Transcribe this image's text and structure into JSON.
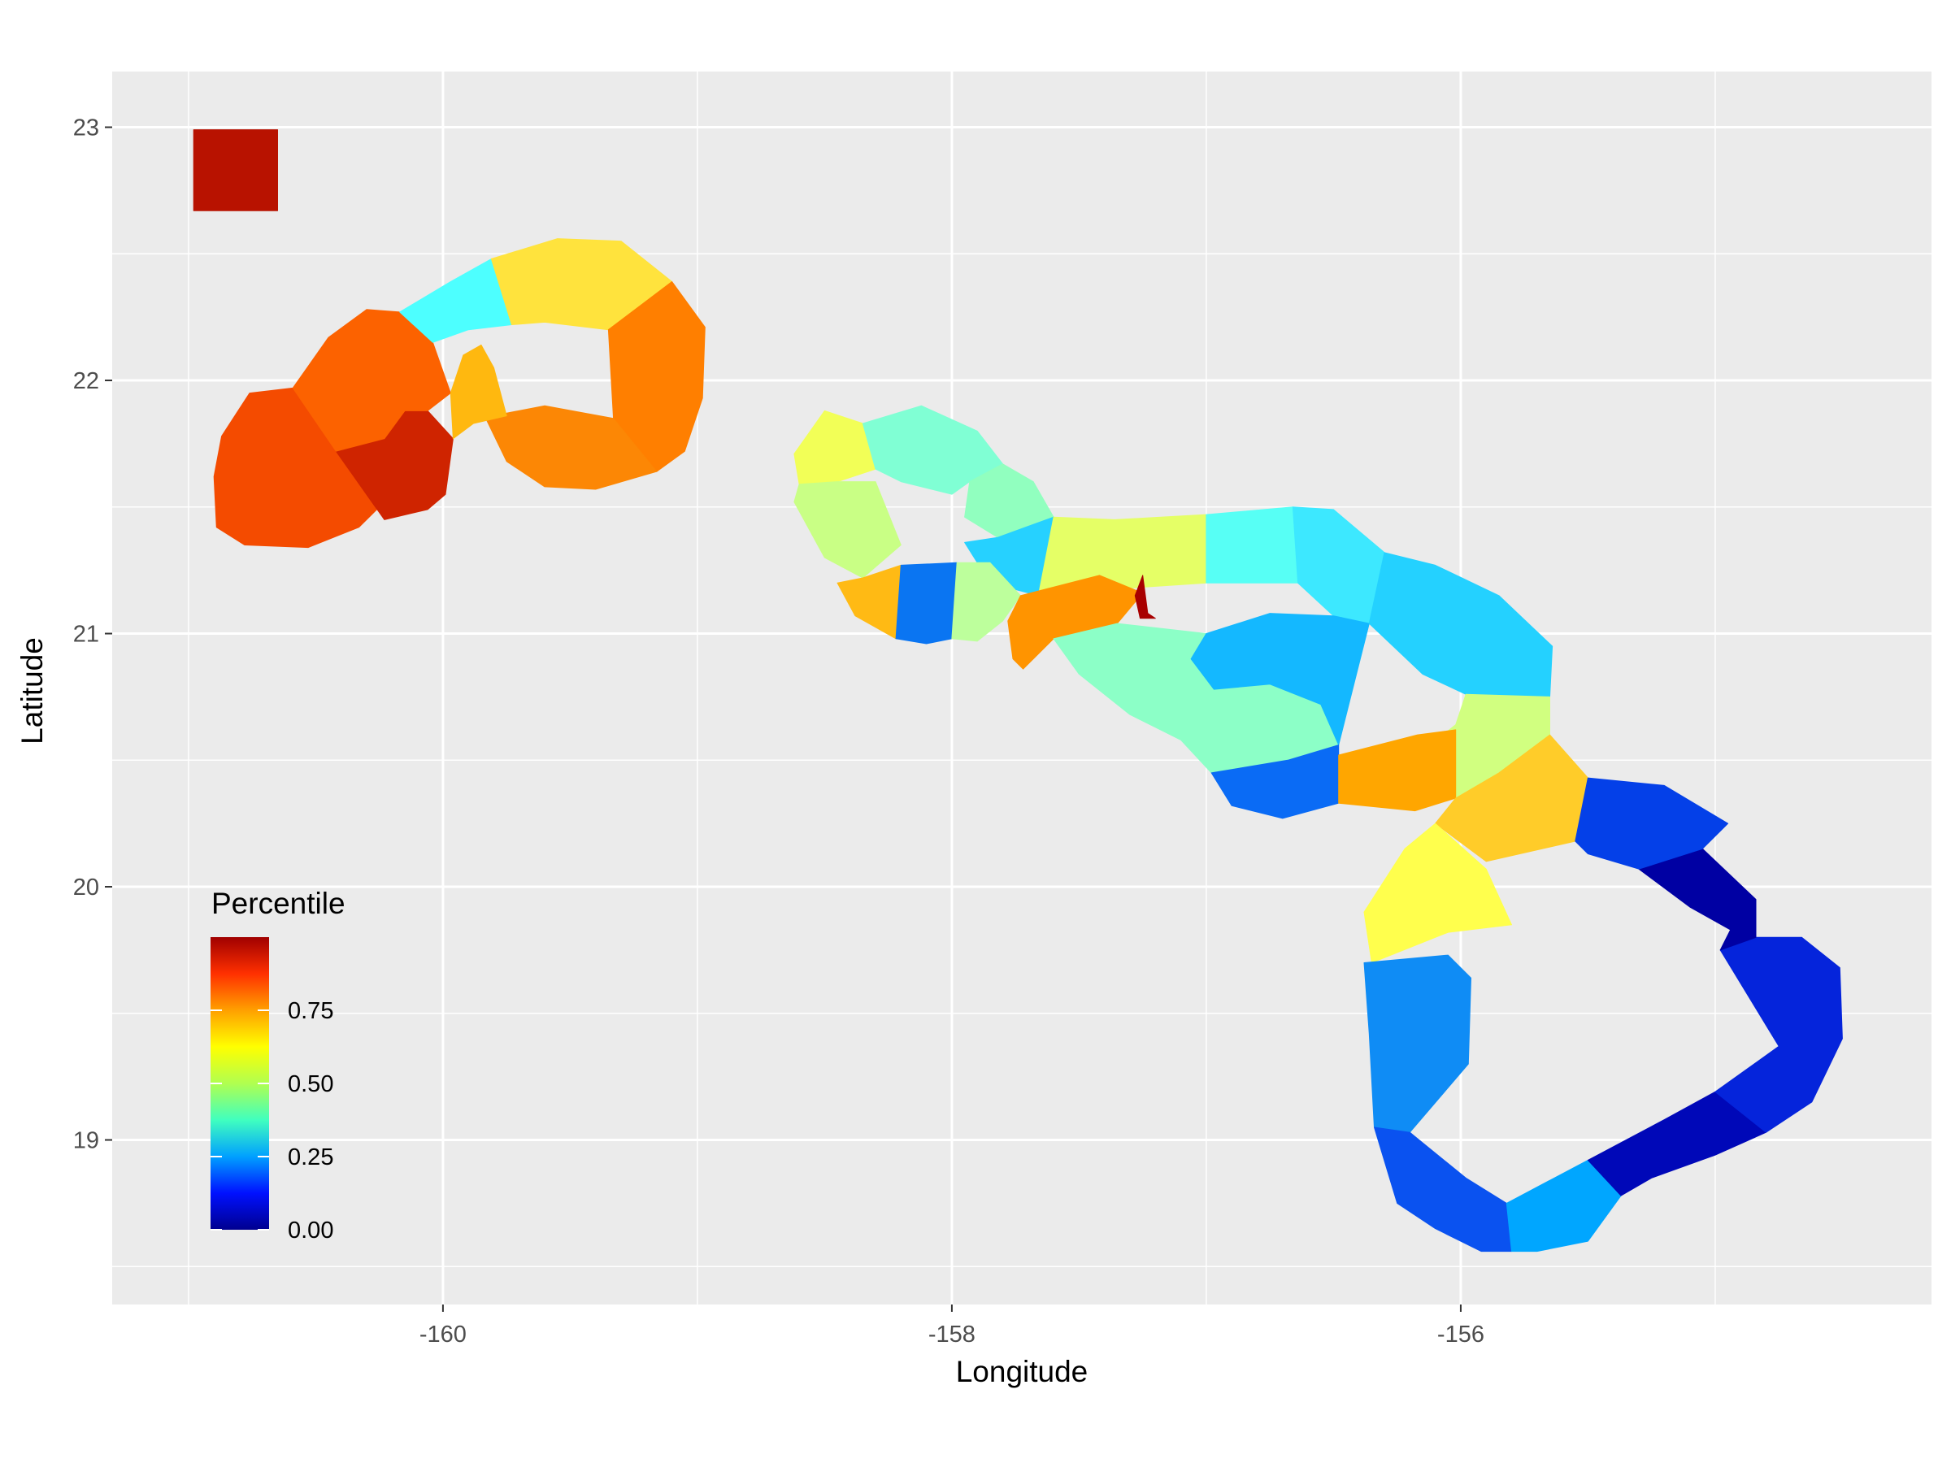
{
  "chart_data": {
    "type": "heatmap",
    "subtype": "choropleth-map",
    "title": "",
    "xlabel": "Longitude",
    "ylabel": "Latitude",
    "xlim": [
      -161.3,
      -154.15
    ],
    "ylim": [
      18.35,
      23.22
    ],
    "x_ticks": [
      -160,
      -158,
      -156
    ],
    "x_tick_labels": [
      "-160",
      "-158",
      "-156"
    ],
    "y_ticks": [
      19,
      20,
      21,
      22,
      23
    ],
    "y_tick_labels": [
      "19",
      "20",
      "21",
      "22",
      "23"
    ],
    "grid": true,
    "panel_background": "#ebebeb",
    "legend": {
      "title": "Percentile",
      "position": "bottom-left",
      "range": [
        0,
        1
      ],
      "breaks": [
        0,
        0.25,
        0.5,
        0.75
      ],
      "labels": [
        "0.00",
        "0.25",
        "0.50",
        "0.75"
      ],
      "colors": [
        "#00008f",
        "#0010ff",
        "#00a0ff",
        "#40ffbf",
        "#b0ff50",
        "#ffff00",
        "#ffa000",
        "#ff3000",
        "#a00000"
      ]
    },
    "regions": [
      {
        "island": "Nihoa",
        "value": 0.97,
        "color": "#b81200"
      },
      {
        "island": "Niihau",
        "value": 0.86,
        "color": "#f44b00"
      },
      {
        "island": "Niihau",
        "value": 0.89,
        "color": "#cf2400"
      },
      {
        "island": "Kauai",
        "value": 0.84,
        "color": "#fc6200"
      },
      {
        "island": "Kauai",
        "value": 0.31,
        "color": "#4dffff"
      },
      {
        "island": "Kauai",
        "value": 0.66,
        "color": "#ffe33d"
      },
      {
        "island": "Kauai",
        "value": 0.79,
        "color": "#ff7f00"
      },
      {
        "island": "Kauai",
        "value": 0.78,
        "color": "#fc8705"
      },
      {
        "island": "Kauai",
        "value": 0.73,
        "color": "#ffb80f"
      },
      {
        "island": "Oahu",
        "value": 0.6,
        "color": "#f2ff57"
      },
      {
        "island": "Oahu",
        "value": 0.4,
        "color": "#80ffd4"
      },
      {
        "island": "Oahu",
        "value": 0.43,
        "color": "#91ffbf"
      },
      {
        "island": "Oahu",
        "value": 0.55,
        "color": "#c9ff85"
      },
      {
        "island": "Oahu",
        "value": 0.27,
        "color": "#26d1ff"
      },
      {
        "island": "Oahu",
        "value": 0.72,
        "color": "#ffba14"
      },
      {
        "island": "Oahu",
        "value": 0.16,
        "color": "#0a75f2"
      },
      {
        "island": "Oahu",
        "value": 0.53,
        "color": "#bdff9c"
      },
      {
        "island": "Molokai",
        "value": 0.58,
        "color": "#e5ff66"
      },
      {
        "island": "Molokai",
        "value": 0.33,
        "color": "#57fff5"
      },
      {
        "island": "Molokai",
        "value": 0.29,
        "color": "#3de8ff"
      },
      {
        "island": "Molokai",
        "value": 0.79,
        "color": "#ff9400"
      },
      {
        "island": "Molokai",
        "value": 0.44,
        "color": "#8cffc7"
      },
      {
        "island": "Molokai",
        "value": 0.99,
        "color": "#a80000"
      },
      {
        "island": "Lanai",
        "value": 0.23,
        "color": "#14b8ff"
      },
      {
        "island": "Kahoolawe",
        "value": 0.16,
        "color": "#0a6bf5"
      },
      {
        "island": "Maui",
        "value": 0.27,
        "color": "#24d1ff"
      },
      {
        "island": "Maui",
        "value": 0.55,
        "color": "#d1ff80"
      },
      {
        "island": "Maui",
        "value": 0.77,
        "color": "#ffa600"
      },
      {
        "island": "Maui",
        "value": 0.7,
        "color": "#ffcc29"
      },
      {
        "island": "Hawaii",
        "value": 0.63,
        "color": "#ffff4d"
      },
      {
        "island": "Hawaii",
        "value": 0.18,
        "color": "#0f8cf5"
      },
      {
        "island": "Hawaii",
        "value": 0.11,
        "color": "#0a52f0"
      },
      {
        "island": "Hawaii",
        "value": 0.23,
        "color": "#00a6ff"
      },
      {
        "island": "Hawaii",
        "value": 0.02,
        "color": "#0008b8"
      },
      {
        "island": "Hawaii",
        "value": 0.04,
        "color": "#0524db"
      },
      {
        "island": "Hawaii",
        "value": 0.0,
        "color": "#0000a3"
      },
      {
        "island": "Hawaii",
        "value": 0.06,
        "color": "#0440e8"
      }
    ]
  }
}
